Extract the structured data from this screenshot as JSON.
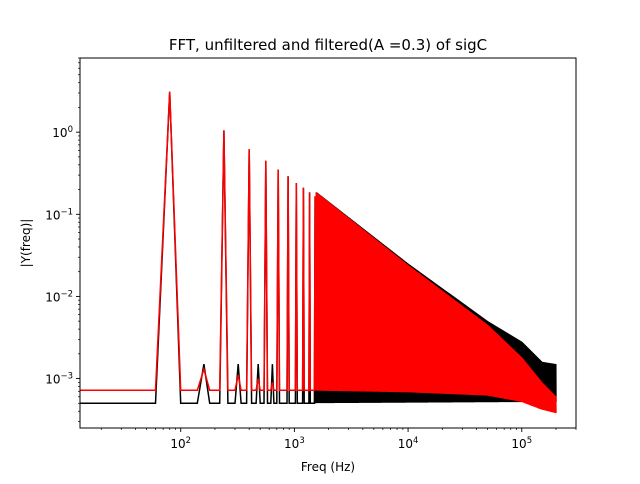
{
  "chart_data": {
    "type": "line",
    "title": "FFT, unfiltered and filtered(A =0.3) of sigC",
    "xlabel": "Freq (Hz)",
    "ylabel": "|Y(freq)|",
    "xscale": "log",
    "yscale": "log",
    "xlim": [
      13,
      300000
    ],
    "ylim": [
      0.00025,
      8
    ],
    "grid": false,
    "legend": "none",
    "x_major_ticks": [
      {
        "value": 100,
        "label": "10^2"
      },
      {
        "value": 1000,
        "label": "10^3"
      },
      {
        "value": 10000,
        "label": "10^4"
      },
      {
        "value": 100000,
        "label": "10^5"
      }
    ],
    "y_major_ticks": [
      {
        "value": 0.001,
        "label": "10^-3"
      },
      {
        "value": 0.01,
        "label": "10^-2"
      },
      {
        "value": 0.1,
        "label": "10^-1"
      },
      {
        "value": 1,
        "label": "10^0"
      }
    ],
    "fundamental_hz": 80,
    "f_max_hz": 200000,
    "series": [
      {
        "color": "#000000",
        "odd_harmonic_peaks": [
          [
            80,
            3.1
          ],
          [
            240,
            1.05
          ],
          [
            400,
            0.62
          ],
          [
            560,
            0.45
          ],
          [
            720,
            0.35
          ],
          [
            880,
            0.29
          ],
          [
            1040,
            0.24
          ],
          [
            1200,
            0.21
          ],
          [
            1360,
            0.185
          ],
          [
            1520,
            0.165
          ]
        ],
        "even_harmonic_peaks": [
          [
            160,
            0.0015
          ],
          [
            320,
            0.0015
          ],
          [
            480,
            0.0015
          ],
          [
            640,
            0.0015
          ]
        ],
        "baseline": 0.0005,
        "envelope_upper": [
          [
            1000,
            0.3
          ],
          [
            10000,
            0.025
          ],
          [
            50000,
            0.005
          ],
          [
            100000,
            0.0028
          ],
          [
            150000,
            0.0016
          ],
          [
            200000,
            0.0015
          ]
        ],
        "envelope_lower": [
          [
            1000,
            0.0005
          ],
          [
            200000,
            0.00052
          ]
        ]
      },
      {
        "color": "#ff0000",
        "odd_harmonic_peaks": [
          [
            80,
            3.1
          ],
          [
            240,
            1.05
          ],
          [
            400,
            0.62
          ],
          [
            560,
            0.45
          ],
          [
            720,
            0.35
          ],
          [
            880,
            0.29
          ],
          [
            1040,
            0.24
          ],
          [
            1200,
            0.21
          ],
          [
            1360,
            0.185
          ],
          [
            1520,
            0.165
          ]
        ],
        "even_harmonic_peaks": [
          [
            160,
            0.0013
          ],
          [
            320,
            0.0011
          ],
          [
            480,
            0.001
          ],
          [
            640,
            0.0009
          ]
        ],
        "baseline": 0.00072,
        "envelope_upper": [
          [
            1000,
            0.3
          ],
          [
            10000,
            0.024
          ],
          [
            50000,
            0.0045
          ],
          [
            100000,
            0.0018
          ],
          [
            150000,
            0.0009
          ],
          [
            200000,
            0.0006
          ]
        ],
        "envelope_lower": [
          [
            1000,
            0.00072
          ],
          [
            10000,
            0.00068
          ],
          [
            50000,
            0.00062
          ],
          [
            100000,
            0.00052
          ],
          [
            150000,
            0.00042
          ],
          [
            200000,
            0.00038
          ]
        ]
      }
    ]
  }
}
